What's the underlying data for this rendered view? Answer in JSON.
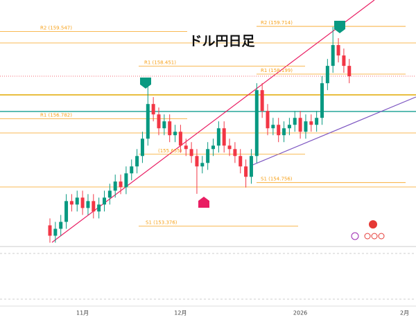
{
  "chart_data": {
    "type": "candlestick",
    "title": "ドル円日足",
    "categories": [
      null,
      null,
      null,
      null,
      null,
      null,
      "11月",
      null,
      null,
      null,
      null,
      null,
      null,
      null,
      null,
      null,
      null,
      null,
      null,
      null,
      null,
      null,
      null,
      null,
      "12月",
      null,
      null,
      null,
      null,
      null,
      null,
      null,
      null,
      null,
      null,
      null,
      null,
      null,
      null,
      null,
      null,
      null,
      null,
      null,
      null,
      null,
      "2026",
      null,
      null,
      null,
      null,
      null,
      null,
      null,
      null,
      null,
      null,
      null,
      null,
      null,
      null,
      null,
      null,
      null,
      null,
      null,
      "2月"
    ],
    "open": [
      153.4,
      153.07,
      153.29,
      153.51,
      154.17,
      154.06,
      154.28,
      153.95,
      154.17,
      153.84,
      154.06,
      154.28,
      154.5,
      154.79,
      154.61,
      155.05,
      155.27,
      155.6,
      156.15,
      157.25,
      156.92,
      156.48,
      156.7,
      156.26,
      156.37,
      155.93,
      155.82,
      155.6,
      155.27,
      155.38,
      155.82,
      155.93,
      156.48,
      155.93,
      155.82,
      155.6,
      155.27,
      154.94,
      155.6,
      157.69,
      157.03,
      156.48,
      156.59,
      156.26,
      156.48,
      156.59,
      156.81,
      156.37,
      156.7,
      156.59,
      156.81,
      157.91,
      158.46,
      159.12,
      158.79,
      158.46,
      null,
      null,
      null,
      null,
      null,
      null,
      null,
      null,
      null,
      null,
      null
    ],
    "high": [
      153.62,
      153.51,
      153.73,
      154.39,
      154.39,
      154.5,
      154.5,
      154.39,
      154.39,
      154.28,
      154.5,
      154.72,
      155.01,
      155.01,
      155.27,
      155.49,
      155.82,
      156.37,
      158.0,
      157.47,
      157.14,
      156.92,
      156.92,
      156.59,
      156.59,
      156.15,
      156.04,
      155.82,
      155.6,
      156.04,
      156.15,
      156.7,
      156.7,
      156.15,
      156.04,
      155.82,
      155.49,
      155.82,
      157.91,
      157.91,
      157.25,
      156.81,
      156.81,
      156.7,
      156.81,
      157.03,
      157.03,
      156.92,
      156.92,
      157.03,
      158.13,
      158.68,
      159.7,
      159.34,
      159.01,
      158.68,
      null,
      null,
      null,
      null,
      null,
      null,
      null,
      null,
      null,
      null,
      null
    ],
    "low": [
      152.85,
      152.85,
      153.07,
      153.29,
      153.84,
      153.84,
      153.73,
      153.73,
      153.62,
      153.62,
      153.84,
      154.06,
      154.28,
      154.39,
      154.39,
      154.83,
      155.05,
      155.38,
      155.93,
      156.7,
      156.26,
      156.26,
      156.04,
      156.04,
      155.71,
      155.6,
      155.38,
      154.4,
      155.05,
      155.16,
      155.6,
      155.71,
      155.71,
      155.6,
      155.38,
      155.05,
      154.6,
      154.72,
      155.38,
      156.81,
      156.26,
      156.26,
      156.04,
      156.04,
      156.26,
      156.37,
      156.15,
      156.15,
      156.37,
      156.37,
      156.59,
      157.69,
      158.24,
      158.57,
      158.24,
      157.91,
      null,
      null,
      null,
      null,
      null,
      null,
      null,
      null,
      null,
      null,
      null
    ],
    "close": [
      153.07,
      153.29,
      153.51,
      154.17,
      154.06,
      154.28,
      153.95,
      154.17,
      153.84,
      154.06,
      154.28,
      154.5,
      154.79,
      154.61,
      155.05,
      155.27,
      155.6,
      156.15,
      157.25,
      156.92,
      156.48,
      156.7,
      156.26,
      156.37,
      155.93,
      155.82,
      155.6,
      155.27,
      155.38,
      155.82,
      155.93,
      156.48,
      155.93,
      155.82,
      155.6,
      155.27,
      154.94,
      155.6,
      157.69,
      157.03,
      156.48,
      156.59,
      156.26,
      156.48,
      156.59,
      156.81,
      156.37,
      156.7,
      156.59,
      156.81,
      157.91,
      158.46,
      159.12,
      158.79,
      158.46,
      158.13,
      null,
      null,
      null,
      null,
      null,
      null,
      null,
      null,
      null,
      null,
      null
    ],
    "ylim": [
      152.75,
      160.55
    ],
    "up_color": "#089981",
    "down_color": "#f23645",
    "pivot_color": "#f7a21b",
    "pivots": [
      {
        "value": 159.547,
        "label": "R2 (159.547)"
      },
      {
        "value": 158.451,
        "label": "R1 (158.451)"
      },
      {
        "value": 156.782,
        "label": "R1 (156.782)"
      },
      {
        "value": 155.655,
        "label": "(155.655)"
      },
      {
        "value": 153.376,
        "label": "S1 (153.376)"
      },
      {
        "value": 159.714,
        "label": "R2 (159.714)"
      },
      {
        "value": 158.199,
        "label": "R1 (158.199)"
      },
      {
        "value": 154.756,
        "label": "S1 (154.756)"
      }
    ]
  }
}
